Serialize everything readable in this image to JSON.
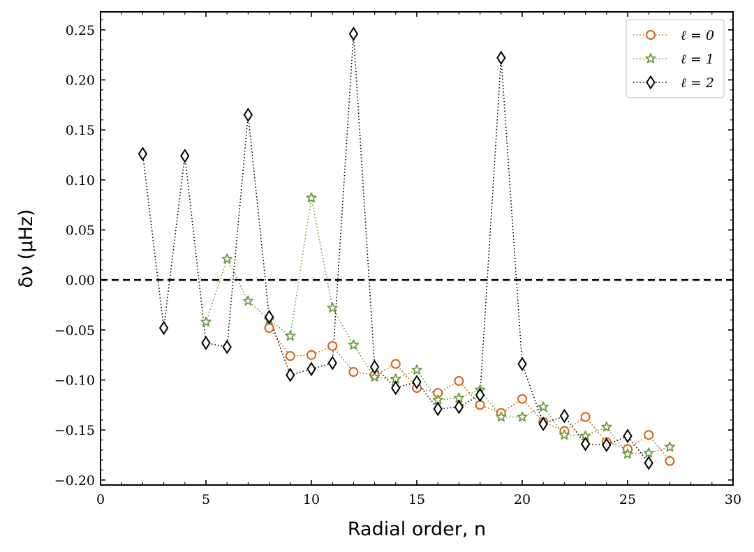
{
  "chart_data": {
    "type": "line",
    "xlabel": "Radial order, n",
    "ylabel": "δν (μHz)",
    "xlim": [
      0,
      30
    ],
    "ylim": [
      -0.205,
      0.268
    ],
    "xticks": [
      0,
      5,
      10,
      15,
      20,
      25,
      30
    ],
    "xtick_labels": [
      "0",
      "5",
      "10",
      "15",
      "20",
      "25",
      "30"
    ],
    "yticks": [
      -0.2,
      -0.15,
      -0.1,
      -0.05,
      0.0,
      0.05,
      0.1,
      0.15,
      0.2,
      0.25
    ],
    "ytick_labels": [
      "−0.20",
      "−0.15",
      "−0.10",
      "−0.05",
      "0.00",
      "0.05",
      "0.10",
      "0.15",
      "0.20",
      "0.25"
    ],
    "reference_line": {
      "y": 0.0,
      "style": "dashed",
      "color": "#000000"
    },
    "grid": false,
    "legend_position": "top-right",
    "series": [
      {
        "name": "ℓ = 0",
        "marker": "circle",
        "color": "#d95f0e",
        "x": [
          8,
          9,
          10,
          11,
          12,
          13,
          14,
          15,
          16,
          17,
          18,
          19,
          20,
          21,
          22,
          23,
          24,
          25,
          26,
          27
        ],
        "y": [
          -0.048,
          -0.076,
          -0.075,
          -0.066,
          -0.092,
          -0.095,
          -0.084,
          -0.108,
          -0.113,
          -0.101,
          -0.125,
          -0.133,
          -0.119,
          -0.142,
          -0.151,
          -0.137,
          -0.162,
          -0.169,
          -0.155,
          -0.181
        ]
      },
      {
        "name": "ℓ = 1",
        "marker": "star",
        "color": "#6a9a3a",
        "x": [
          5,
          6,
          7,
          8,
          9,
          10,
          11,
          12,
          13,
          14,
          15,
          16,
          17,
          18,
          19,
          20,
          21,
          22,
          23,
          24,
          25,
          26,
          27
        ],
        "y": [
          -0.042,
          0.021,
          -0.021,
          -0.04,
          -0.056,
          0.082,
          -0.028,
          -0.065,
          -0.097,
          -0.099,
          -0.09,
          -0.12,
          -0.118,
          -0.11,
          -0.137,
          -0.137,
          -0.127,
          -0.155,
          -0.156,
          -0.147,
          -0.174,
          -0.173,
          -0.167
        ]
      },
      {
        "name": "ℓ = 2",
        "marker": "diamond",
        "color": "#000000",
        "x": [
          2,
          3,
          4,
          5,
          6,
          7,
          8,
          9,
          10,
          11,
          12,
          13,
          14,
          15,
          16,
          17,
          18,
          19,
          20,
          21,
          22,
          23,
          24,
          25,
          26
        ],
        "y": [
          0.126,
          -0.048,
          0.124,
          -0.063,
          -0.067,
          0.165,
          -0.037,
          -0.095,
          -0.089,
          -0.083,
          0.246,
          -0.087,
          -0.108,
          -0.102,
          -0.129,
          -0.127,
          -0.115,
          0.222,
          -0.084,
          -0.144,
          -0.136,
          -0.164,
          -0.165,
          -0.156,
          -0.183
        ]
      }
    ]
  }
}
